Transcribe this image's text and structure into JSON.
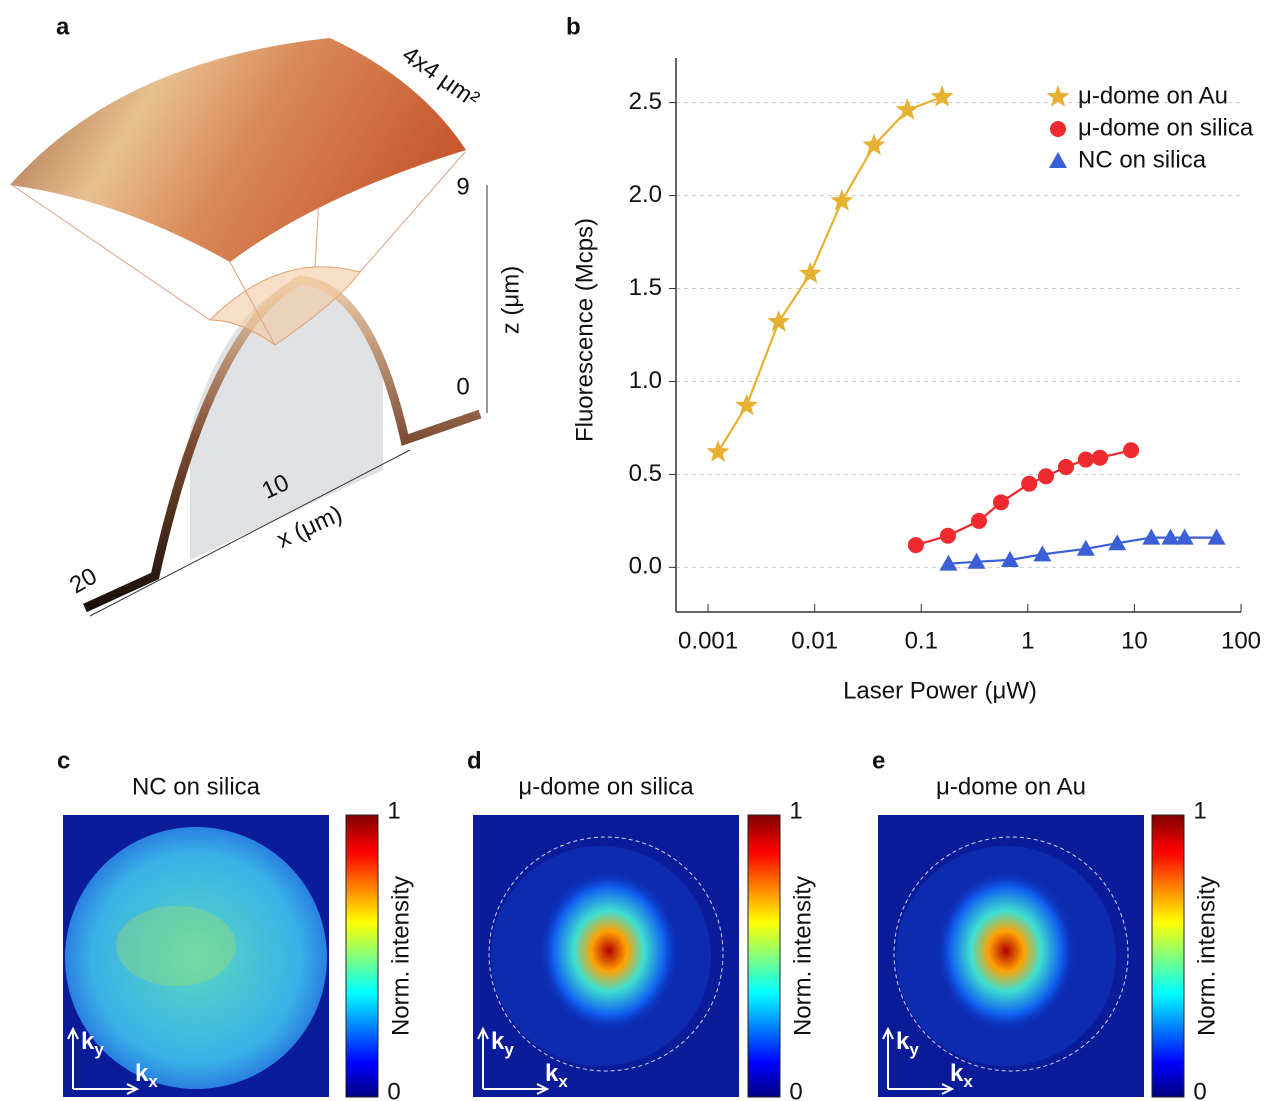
{
  "panels": {
    "a": {
      "label": "a",
      "area_label": "4x4 μm²",
      "z_label": "z (μm)",
      "z_ticks": [
        "9",
        "0"
      ],
      "x_label": "x (μm)",
      "x_ticks": [
        "10",
        "20"
      ]
    },
    "c": {
      "label": "c",
      "title": "NC on silica",
      "colorbar_label": "Norm. intensity",
      "colorbar_ticks": [
        "1",
        "0"
      ],
      "ky": [
        "k",
        "y"
      ],
      "kx": [
        "k",
        "x"
      ]
    },
    "d": {
      "label": "d",
      "title": "μ-dome on silica",
      "colorbar_label": "Norm. intensity",
      "colorbar_ticks": [
        "1",
        "0"
      ],
      "ky": [
        "k",
        "y"
      ],
      "kx": [
        "k",
        "x"
      ]
    },
    "e": {
      "label": "e",
      "title": "μ-dome on Au",
      "colorbar_label": "Norm. intensity",
      "colorbar_ticks": [
        "1",
        "0"
      ],
      "ky": [
        "k",
        "y"
      ],
      "kx": [
        "k",
        "x"
      ]
    }
  },
  "chart_data": {
    "type": "line",
    "panel_label": "b",
    "x_label": "Laser Power (μW)",
    "y_label": "Fluorescence (Mcps)",
    "log_x": true,
    "grid": true,
    "legend": "upper right",
    "xlim": [
      0.0005,
      100
    ],
    "xticks": [
      0.001,
      0.01,
      0.1,
      1,
      10,
      100
    ],
    "ylim": [
      -0.24,
      2.74
    ],
    "yticks": [
      {
        "value": 0,
        "label": "0.0"
      },
      0.5,
      {
        "value": 1,
        "label": "1.0"
      },
      1.5,
      {
        "value": 2,
        "label": "2.0"
      },
      2.5
    ],
    "series": [
      {
        "name": "μ-dome on Au",
        "color": "#e8b030",
        "marker": "star",
        "x": [
          0.00124,
          0.0023,
          0.0046,
          0.0091,
          0.018,
          0.036,
          0.074,
          0.157
        ],
        "values": [
          0.62,
          0.87,
          1.32,
          1.58,
          1.97,
          2.27,
          2.46,
          2.53
        ]
      },
      {
        "name": "μ-dome on silica",
        "color": "#ee2a2e",
        "marker": "circle",
        "x": [
          0.089,
          0.178,
          0.348,
          0.56,
          1.03,
          1.48,
          2.28,
          3.5,
          4.75,
          9.3
        ],
        "values": [
          0.12,
          0.17,
          0.25,
          0.35,
          0.45,
          0.49,
          0.54,
          0.58,
          0.59,
          0.63
        ]
      },
      {
        "name": "NC on silica",
        "color": "#3b5fd6",
        "marker": "triangle",
        "x": [
          0.18,
          0.33,
          0.68,
          1.37,
          3.5,
          6.9,
          14.4,
          21.8,
          29.6,
          59
        ],
        "values": [
          0.02,
          0.03,
          0.04,
          0.07,
          0.1,
          0.13,
          0.16,
          0.16,
          0.16,
          0.16
        ]
      }
    ]
  }
}
